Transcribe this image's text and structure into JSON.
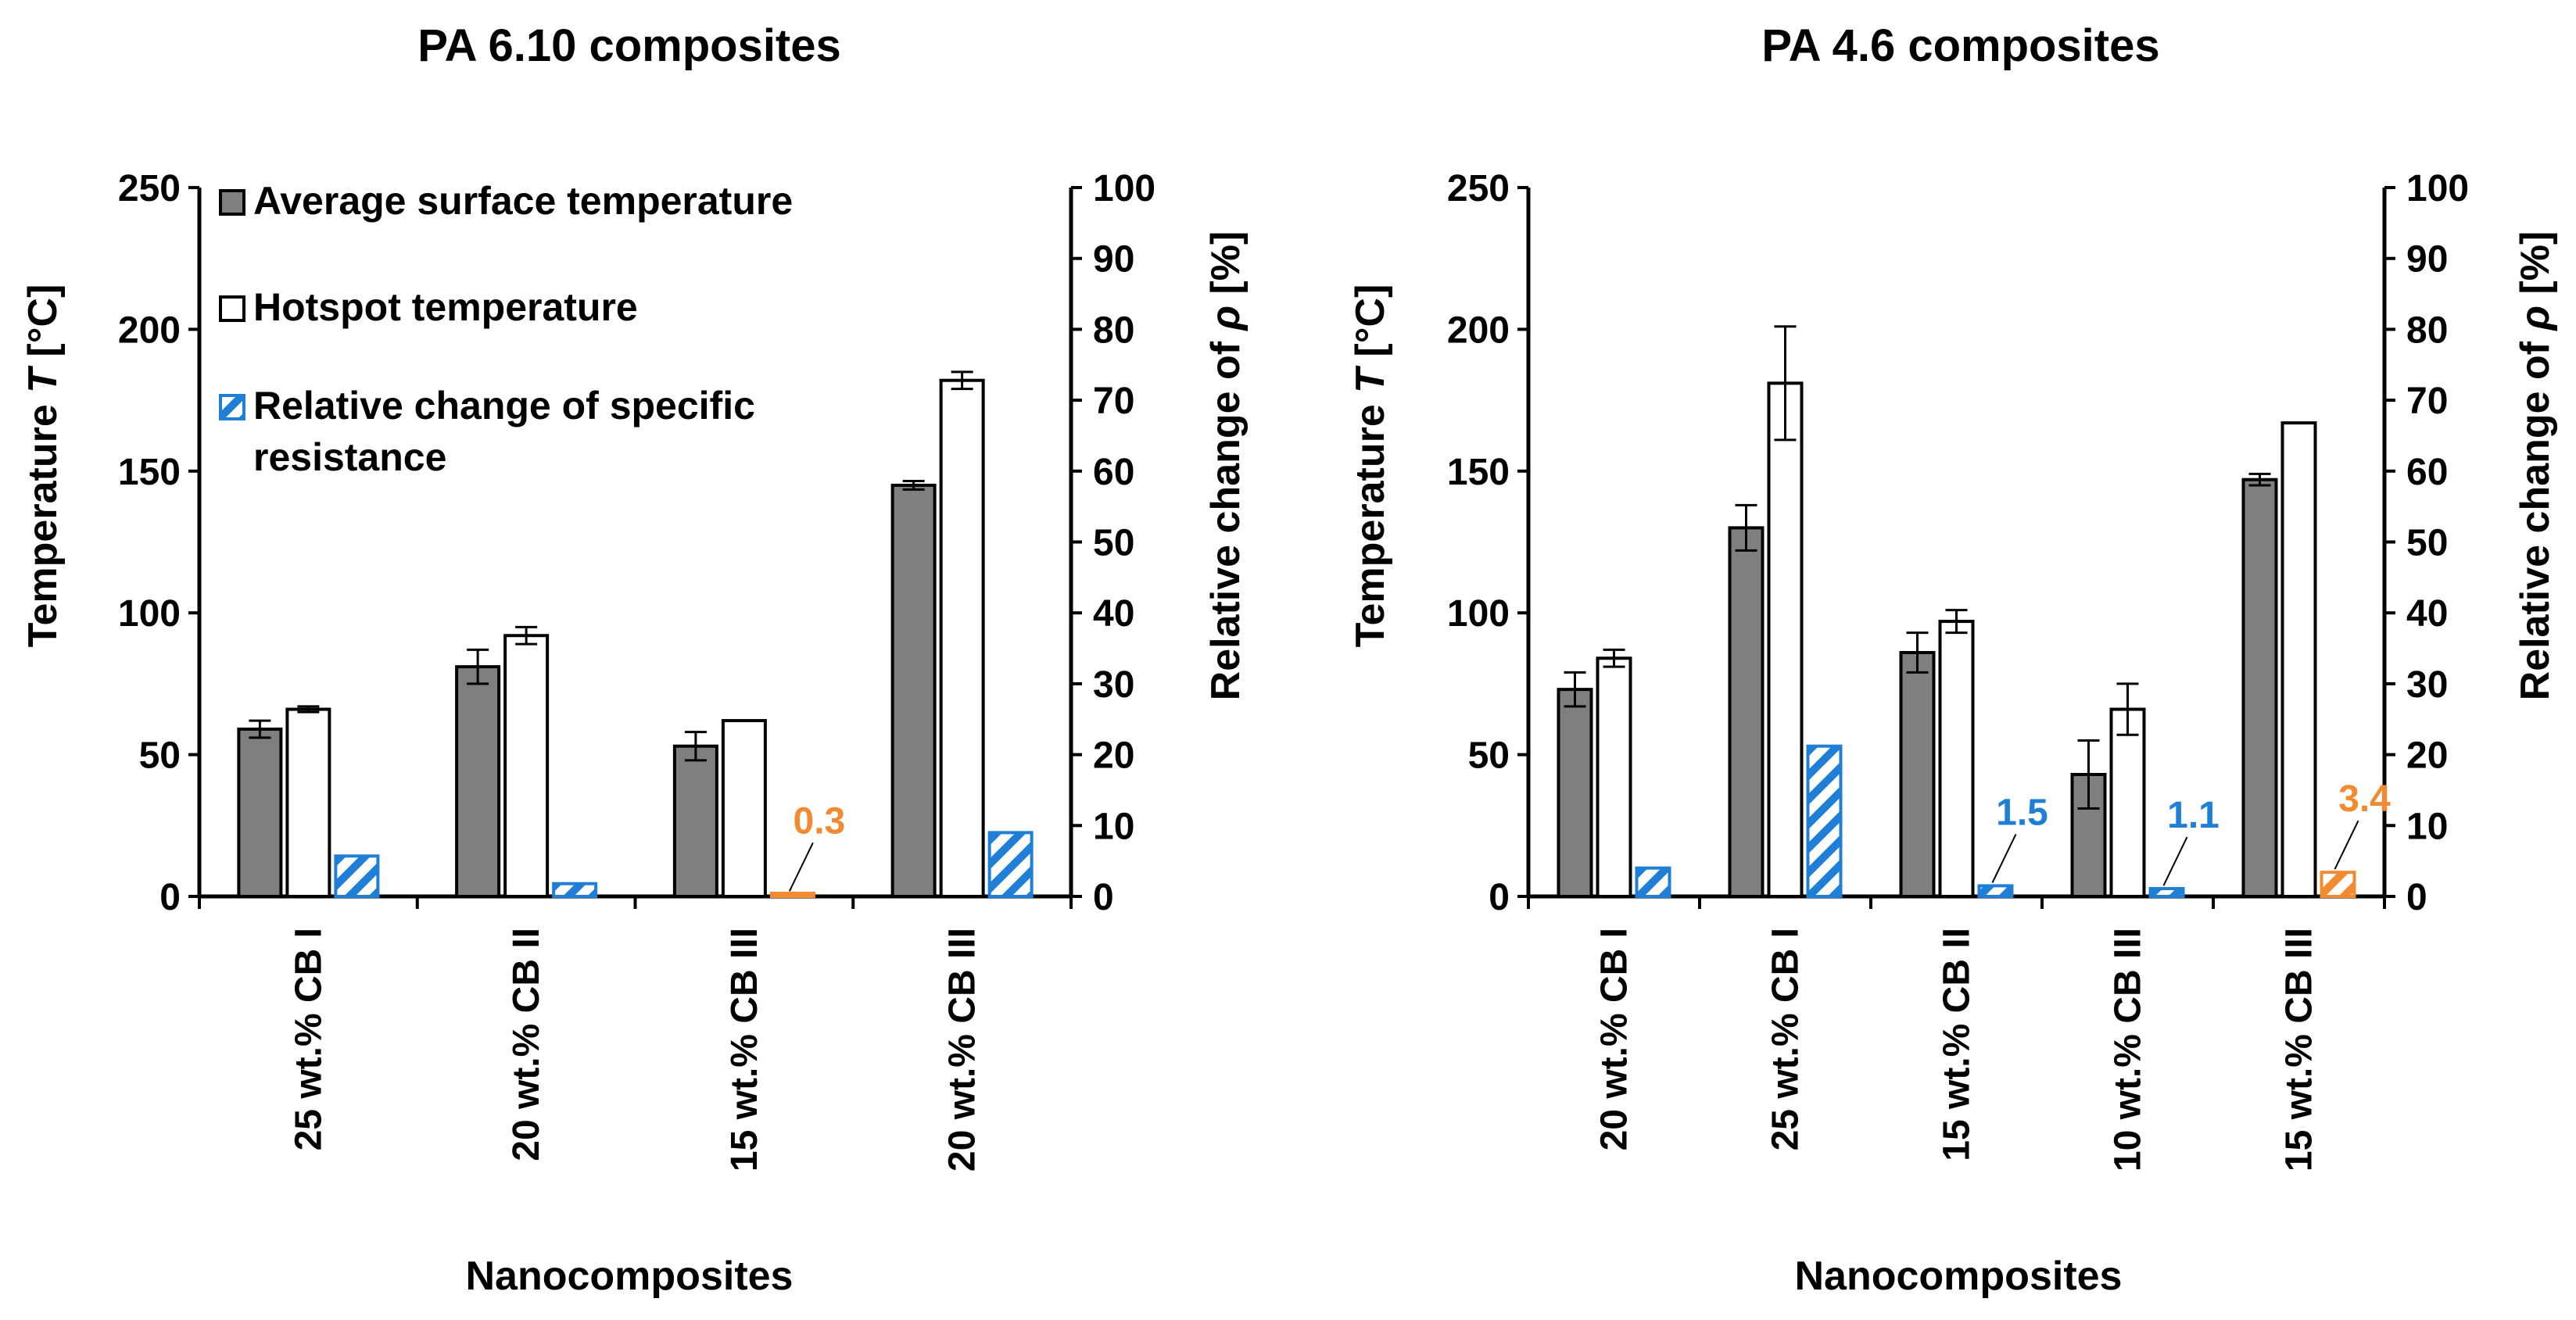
{
  "chart_data": [
    {
      "type": "bar",
      "title": "PA 6.10 composites",
      "xlabel": "Nanocomposites",
      "ylabel_left": "Temperature T [°C]",
      "ylabel_left_parts": [
        "Temperature ",
        "T",
        " [°C]"
      ],
      "ylabel_right": "Relative change of ρ [%]",
      "ylabel_right_parts": [
        "Relative change of ",
        "ρ",
        " [%]"
      ],
      "ylim_left": [
        0,
        250
      ],
      "ylim_right": [
        0,
        100
      ],
      "left_ticks": [
        "0",
        "50",
        "100",
        "150",
        "200",
        "250"
      ],
      "right_ticks": [
        "0",
        "10",
        "20",
        "30",
        "40",
        "50",
        "60",
        "70",
        "80",
        "90",
        "100"
      ],
      "categories": [
        "25  wt.% CB I",
        "20  wt.% CB II",
        "15  wt.% CB III",
        "20  wt.% CB III"
      ],
      "series": [
        {
          "name": "Average surface temperature",
          "axis": "left",
          "values": [
            59,
            81,
            53,
            145
          ],
          "errors": [
            3,
            6,
            5,
            1.5
          ],
          "color": "#7f7f7f"
        },
        {
          "name": "Hotspot temperature",
          "axis": "left",
          "values": [
            66,
            92,
            62,
            182
          ],
          "errors": [
            1,
            3,
            0,
            3
          ],
          "color": "#ffffff"
        },
        {
          "name": "Relative change of specific resistance",
          "axis": "right",
          "values": [
            5.7,
            1.8,
            0.3,
            9.0
          ],
          "colors": [
            "#1f7fd6",
            "#1f7fd6",
            "#f28a30",
            "#1f7fd6"
          ]
        }
      ],
      "annotations": [
        {
          "text": "0.3",
          "category_index": 2,
          "color": "#f28a30"
        }
      ],
      "legend": {
        "position": "top-left",
        "items": [
          {
            "key": "avg",
            "lines": [
              "Average surface temperature"
            ]
          },
          {
            "key": "hot",
            "lines": [
              "Hotspot temperature"
            ]
          },
          {
            "key": "rel",
            "lines": [
              "Relative change of specific",
              "resistance"
            ]
          }
        ]
      }
    },
    {
      "type": "bar",
      "title": "PA 4.6 composites",
      "xlabel": "Nanocomposites",
      "ylabel_left": "Temperature T [°C]",
      "ylabel_left_parts": [
        "Temperature ",
        "T",
        " [°C]"
      ],
      "ylabel_right": "Relative change of ρ [%]",
      "ylabel_right_parts": [
        "Relative change of ",
        "ρ",
        " [%]"
      ],
      "ylim_left": [
        0,
        250
      ],
      "ylim_right": [
        0,
        100
      ],
      "left_ticks": [
        "0",
        "50",
        "100",
        "150",
        "200",
        "250"
      ],
      "right_ticks": [
        "0",
        "10",
        "20",
        "30",
        "40",
        "50",
        "60",
        "70",
        "80",
        "90",
        "100"
      ],
      "categories": [
        "20  wt.%  CB I",
        "25  wt.%  CB I",
        "15  wt.%  CB II",
        "10  wt.% CB III",
        "15  wt.% CB III"
      ],
      "series": [
        {
          "name": "Average surface temperature",
          "axis": "left",
          "values": [
            73,
            130,
            86,
            43,
            147
          ],
          "errors": [
            6,
            8,
            7,
            12,
            2
          ],
          "color": "#7f7f7f"
        },
        {
          "name": "Hotspot temperature",
          "axis": "left",
          "values": [
            84,
            181,
            97,
            66,
            167
          ],
          "errors": [
            3,
            20,
            4,
            9,
            0
          ],
          "color": "#ffffff"
        },
        {
          "name": "Relative change of specific resistance",
          "axis": "right",
          "values": [
            4.0,
            21.2,
            1.5,
            1.1,
            3.4
          ],
          "colors": [
            "#1f7fd6",
            "#1f7fd6",
            "#1f7fd6",
            "#1f7fd6",
            "#f28a30"
          ]
        }
      ],
      "annotations": [
        {
          "text": "1.5",
          "category_index": 2,
          "color": "#1f7fd6"
        },
        {
          "text": "1.1",
          "category_index": 3,
          "color": "#1f7fd6"
        },
        {
          "text": "3.4",
          "category_index": 4,
          "color": "#f28a30"
        }
      ]
    }
  ]
}
